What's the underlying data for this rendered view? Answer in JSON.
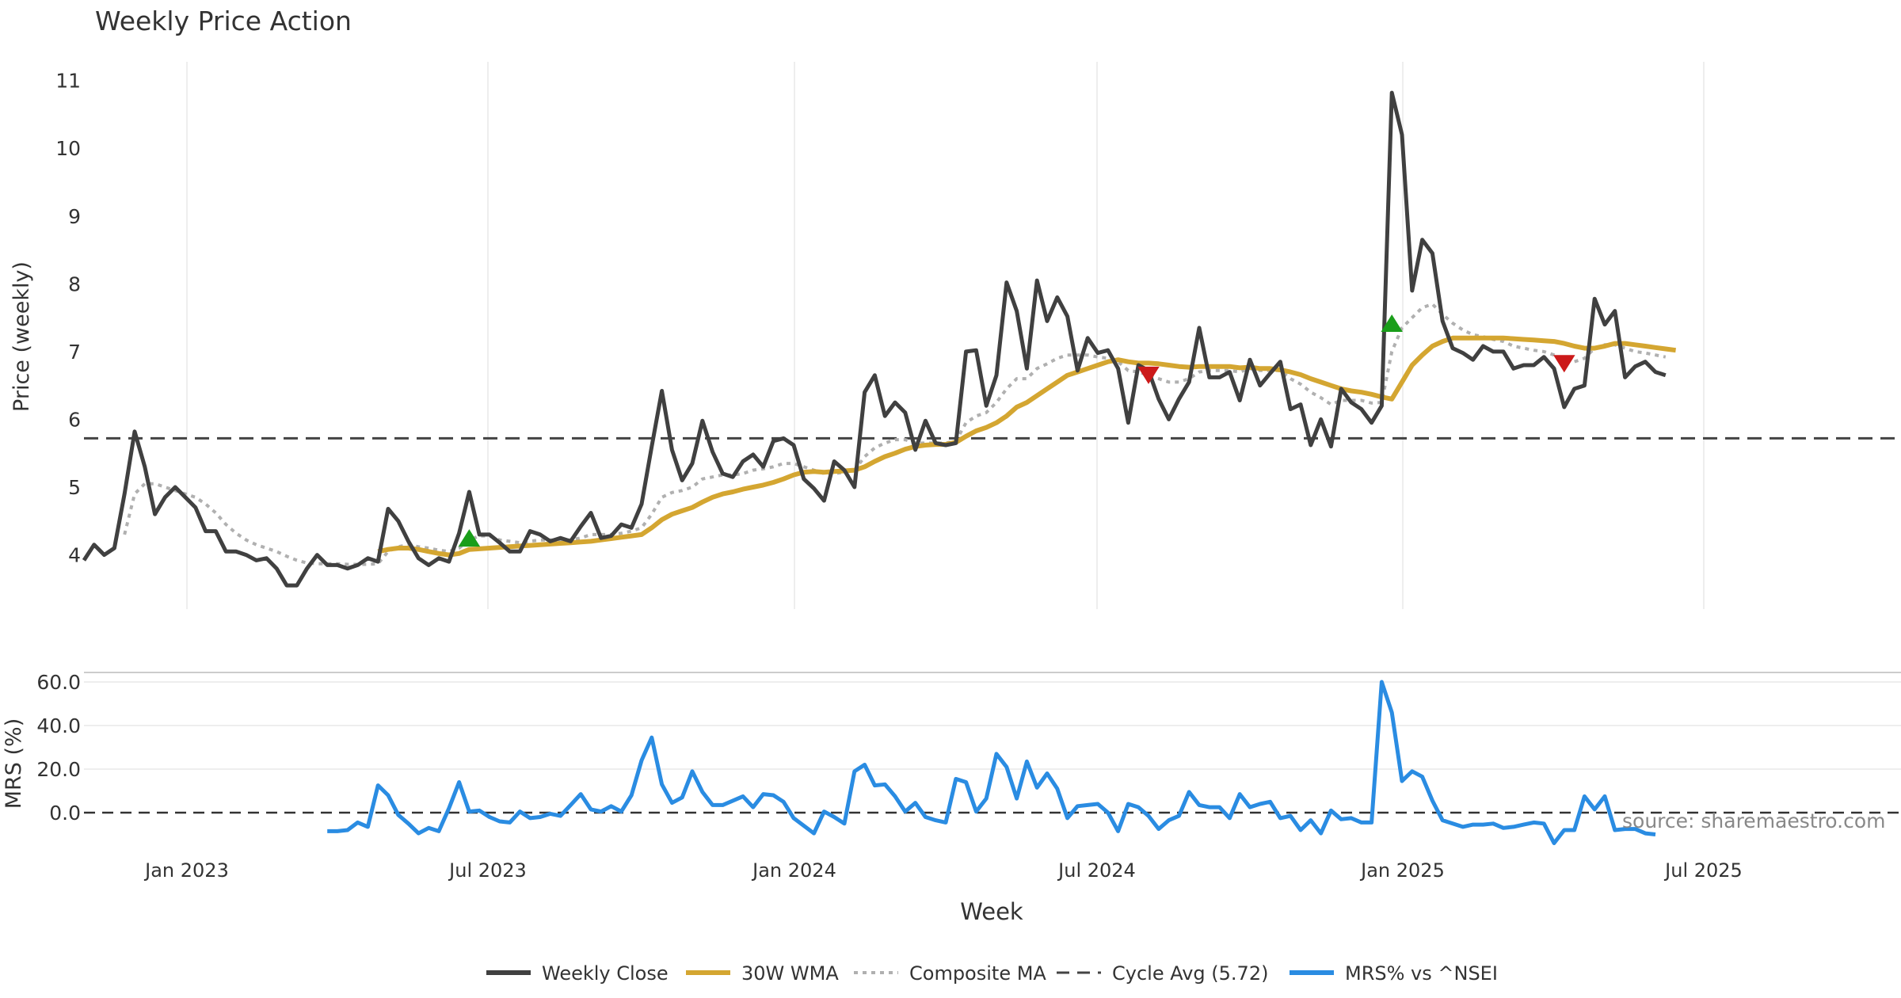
{
  "chart_data": {
    "type": "line",
    "title": "Weekly Price Action",
    "source_note": "source: sharemaestro.com",
    "xlabel": "Week",
    "x_ticks": [
      "Jan 2023",
      "Jul 2023",
      "Jan 2024",
      "Jul 2024",
      "Jan 2025",
      "Jul 2025"
    ],
    "colors": {
      "close": "#404040",
      "wma": "#d4a631",
      "composite": "#b0b0b0",
      "cycle": "#444444",
      "mrs": "#2a8ce2",
      "buy": "#1a9e1a",
      "sell": "#cc1a1a"
    },
    "price_panel": {
      "ylabel": "Price (weekly)",
      "ylim": [
        3.2,
        11.3
      ],
      "y_ticks": [
        "4",
        "5",
        "6",
        "7",
        "8",
        "9",
        "10",
        "11"
      ],
      "cycle_avg": 5.72,
      "weekly_close": [
        3.92,
        4.15,
        4.0,
        4.1,
        4.9,
        5.82,
        5.3,
        4.6,
        4.85,
        5.0,
        4.85,
        4.7,
        4.35,
        4.35,
        4.05,
        4.05,
        4.0,
        3.92,
        3.95,
        3.8,
        3.55,
        3.55,
        3.8,
        4.0,
        3.85,
        3.85,
        3.8,
        3.85,
        3.95,
        3.9,
        4.68,
        4.5,
        4.2,
        3.95,
        3.85,
        3.95,
        3.9,
        4.32,
        4.93,
        4.3,
        4.3,
        4.18,
        4.05,
        4.05,
        4.35,
        4.3,
        4.2,
        4.25,
        4.2,
        4.42,
        4.62,
        4.25,
        4.28,
        4.45,
        4.4,
        4.75,
        5.6,
        6.42,
        5.55,
        5.1,
        5.35,
        5.98,
        5.52,
        5.2,
        5.15,
        5.38,
        5.48,
        5.3,
        5.68,
        5.72,
        5.62,
        5.12,
        4.98,
        4.8,
        5.38,
        5.25,
        5.0,
        6.4,
        6.65,
        6.05,
        6.25,
        6.1,
        5.55,
        5.98,
        5.65,
        5.62,
        5.65,
        7.0,
        7.02,
        6.2,
        6.65,
        8.02,
        7.6,
        6.75,
        8.05,
        7.45,
        7.8,
        7.52,
        6.72,
        7.2,
        6.98,
        7.02,
        6.75,
        5.95,
        6.8,
        6.72,
        6.3,
        6.0,
        6.3,
        6.55,
        7.35,
        6.62,
        6.62,
        6.7,
        6.28,
        6.88,
        6.5,
        6.68,
        6.85,
        6.15,
        6.22,
        5.62,
        6.0,
        5.6,
        6.45,
        6.25,
        6.15,
        5.95,
        6.2,
        10.82,
        10.2,
        7.9,
        8.65,
        8.45,
        7.45,
        7.05,
        6.98,
        6.88,
        7.08,
        7.0,
        7.0,
        6.75,
        6.8,
        6.8,
        6.92,
        6.75,
        6.18,
        6.45,
        6.5,
        7.78,
        7.4,
        7.6,
        6.62,
        6.78,
        6.85,
        6.7,
        6.65
      ],
      "wma_30w": [
        null,
        null,
        null,
        null,
        null,
        null,
        null,
        null,
        null,
        null,
        null,
        null,
        null,
        null,
        null,
        null,
        null,
        null,
        null,
        null,
        null,
        null,
        null,
        null,
        null,
        null,
        null,
        null,
        null,
        4.05,
        4.08,
        4.1,
        4.1,
        4.08,
        4.05,
        4.02,
        4.0,
        4.02,
        4.08,
        4.09,
        4.1,
        4.11,
        4.12,
        4.13,
        4.14,
        4.15,
        4.16,
        4.17,
        4.18,
        4.19,
        4.2,
        4.22,
        4.24,
        4.26,
        4.28,
        4.3,
        4.4,
        4.52,
        4.6,
        4.65,
        4.7,
        4.78,
        4.85,
        4.9,
        4.93,
        4.97,
        5.0,
        5.03,
        5.07,
        5.12,
        5.18,
        5.22,
        5.23,
        5.22,
        5.23,
        5.24,
        5.25,
        5.3,
        5.38,
        5.45,
        5.5,
        5.56,
        5.6,
        5.62,
        5.63,
        5.63,
        5.66,
        5.75,
        5.83,
        5.88,
        5.95,
        6.05,
        6.18,
        6.25,
        6.35,
        6.45,
        6.55,
        6.65,
        6.7,
        6.75,
        6.8,
        6.85,
        6.88,
        6.85,
        6.83,
        6.83,
        6.82,
        6.8,
        6.78,
        6.77,
        6.78,
        6.78,
        6.78,
        6.78,
        6.76,
        6.77,
        6.75,
        6.75,
        6.73,
        6.7,
        6.66,
        6.6,
        6.55,
        6.5,
        6.45,
        6.42,
        6.4,
        6.37,
        6.33,
        6.3,
        6.55,
        6.8,
        6.95,
        7.08,
        7.15,
        7.2,
        7.2,
        7.2,
        7.2,
        7.2,
        7.2,
        7.19,
        7.18,
        7.17,
        7.16,
        7.15,
        7.12,
        7.08,
        7.05,
        7.05,
        7.08,
        7.12,
        7.12,
        7.1,
        7.08,
        7.06,
        7.04,
        7.02
      ],
      "composite_ma": [
        null,
        null,
        null,
        null,
        4.3,
        4.9,
        5.05,
        5.05,
        5.0,
        4.95,
        4.9,
        4.85,
        4.75,
        4.62,
        4.45,
        4.32,
        4.22,
        4.15,
        4.1,
        4.05,
        3.98,
        3.92,
        3.88,
        3.87,
        3.87,
        3.87,
        3.86,
        3.86,
        3.86,
        3.87,
        4.05,
        4.12,
        4.15,
        4.12,
        4.1,
        4.07,
        4.05,
        4.1,
        4.22,
        4.28,
        4.28,
        4.22,
        4.2,
        4.18,
        4.2,
        4.22,
        4.22,
        4.22,
        4.22,
        4.25,
        4.3,
        4.3,
        4.3,
        4.32,
        4.35,
        4.4,
        4.6,
        4.85,
        4.92,
        4.95,
        5.0,
        5.12,
        5.15,
        5.18,
        5.18,
        5.2,
        5.25,
        5.27,
        5.3,
        5.35,
        5.35,
        5.3,
        5.25,
        5.2,
        5.2,
        5.22,
        5.25,
        5.45,
        5.58,
        5.65,
        5.7,
        5.7,
        5.65,
        5.65,
        5.65,
        5.65,
        5.68,
        5.95,
        6.05,
        6.1,
        6.25,
        6.45,
        6.6,
        6.6,
        6.75,
        6.82,
        6.9,
        6.95,
        6.95,
        6.95,
        6.92,
        6.9,
        6.85,
        6.72,
        6.7,
        6.65,
        6.6,
        6.55,
        6.55,
        6.6,
        6.7,
        6.72,
        6.72,
        6.72,
        6.7,
        6.75,
        6.72,
        6.72,
        6.72,
        6.6,
        6.52,
        6.4,
        6.32,
        6.22,
        6.28,
        6.28,
        6.28,
        6.24,
        6.25,
        7.0,
        7.35,
        7.5,
        7.65,
        7.7,
        7.55,
        7.42,
        7.32,
        7.25,
        7.22,
        7.18,
        7.15,
        7.08,
        7.05,
        7.02,
        7.0,
        6.95,
        6.85,
        6.85,
        6.9,
        7.05,
        7.1,
        7.1,
        7.05,
        7.0,
        6.98,
        6.95,
        6.92
      ],
      "signals": [
        {
          "type": "buy",
          "week": 38,
          "price": 4.25
        },
        {
          "type": "sell",
          "week": 105,
          "price": 6.65
        },
        {
          "type": "buy",
          "week": 129,
          "price": 7.42
        },
        {
          "type": "sell",
          "week": 146,
          "price": 6.82
        }
      ]
    },
    "mrs_panel": {
      "ylabel": "MRS (%)",
      "ylim": [
        -16,
        64
      ],
      "y_ticks": [
        "0.0",
        "20.0",
        "40.0",
        "60.0"
      ],
      "zero_line": 0.0,
      "mrs_vs_nsei": [
        null,
        null,
        null,
        null,
        null,
        null,
        null,
        null,
        null,
        null,
        null,
        null,
        null,
        null,
        null,
        null,
        null,
        null,
        null,
        null,
        null,
        null,
        null,
        null,
        -8.5,
        -8.5,
        -8.0,
        -4.5,
        -6.5,
        12.5,
        8.0,
        -1.0,
        -5.0,
        -9.5,
        -7.0,
        -8.5,
        2.0,
        14.0,
        0.5,
        1.0,
        -2.0,
        -4.0,
        -4.5,
        0.5,
        -2.5,
        -2.0,
        -0.5,
        -1.5,
        3.5,
        8.5,
        1.5,
        0.5,
        3.0,
        0.5,
        8.0,
        24.0,
        34.5,
        13.0,
        4.5,
        7.0,
        19.0,
        9.5,
        3.5,
        3.5,
        5.5,
        7.5,
        2.5,
        8.5,
        8.0,
        5.0,
        -2.5,
        -6.0,
        -9.5,
        0.5,
        -2.0,
        -5.0,
        19.0,
        22.0,
        12.5,
        13.0,
        7.5,
        0.5,
        4.5,
        -2.0,
        -3.5,
        -4.5,
        15.5,
        14.0,
        0.5,
        6.5,
        27.0,
        21.0,
        6.5,
        23.5,
        11.5,
        18.0,
        11.0,
        -2.5,
        3.0,
        3.5,
        4.0,
        0.0,
        -8.5,
        4.0,
        2.5,
        -1.5,
        -7.5,
        -3.5,
        -1.5,
        9.5,
        3.5,
        2.5,
        2.5,
        -2.5,
        8.5,
        2.5,
        4.0,
        5.0,
        -2.5,
        -1.5,
        -8.0,
        -3.5,
        -9.5,
        1.0,
        -3.0,
        -2.5,
        -4.5,
        -4.5,
        60.0,
        46.0,
        14.5,
        19.0,
        16.5,
        5.5,
        -3.5,
        -5.0,
        -6.5,
        -5.5,
        -5.5,
        -5.0,
        -7.0,
        -6.5,
        -5.5,
        -4.5,
        -5.0,
        -14.0,
        -8.0,
        -8.0,
        7.5,
        1.5,
        7.5,
        -8.0,
        -7.5,
        -7.5,
        -9.5,
        -10.0
      ]
    },
    "legend": {
      "placement": "bottom-center",
      "items": [
        {
          "label": "Weekly Close",
          "key": "close",
          "dash": "solid"
        },
        {
          "label": "30W WMA",
          "key": "wma",
          "dash": "solid"
        },
        {
          "label": "Composite MA",
          "key": "composite",
          "dash": "dotted"
        },
        {
          "label": "Cycle Avg (5.72)",
          "key": "cycle",
          "dash": "dashed"
        },
        {
          "label": "MRS% vs ^NSEI",
          "key": "mrs",
          "dash": "solid"
        }
      ]
    }
  }
}
